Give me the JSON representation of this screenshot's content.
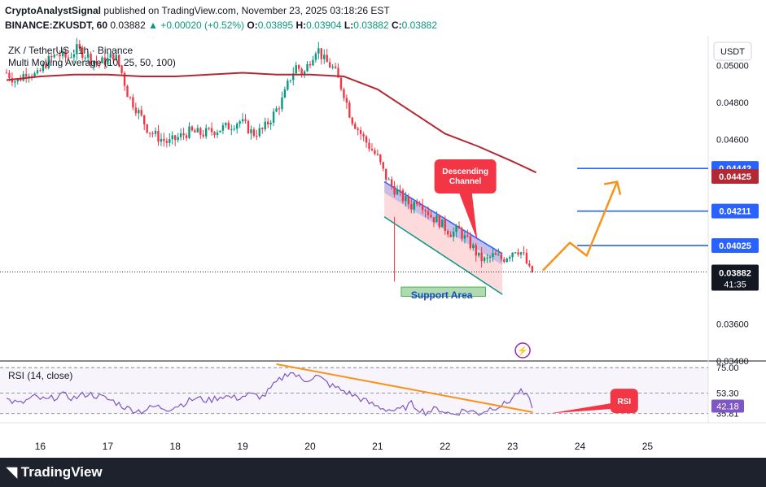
{
  "header": {
    "publisher": "CryptoAnalystSignal",
    "published_text": "published on TradingView.com, November 23, 2025 03:18:26 EST",
    "symbol_line": "BINANCE:ZKUSDT, 60",
    "last": "0.03882",
    "change": "▲ +0.00020 (+0.52%)",
    "ohlc_o": "0.03895",
    "ohlc_h": "0.03904",
    "ohlc_l": "0.03882",
    "ohlc_c": "0.03882"
  },
  "legend": {
    "title": "ZK / TetherUS · 1h · Binance",
    "indicator": "Multi Moving Average (10, 25, 50, 100)",
    "rsi_label": "RSI (14, close)"
  },
  "footer": {
    "brand": "TradingView"
  },
  "colors": {
    "up": "#089981",
    "down": "#f23645",
    "ma": "#b22833",
    "rsi": "#7e57c2",
    "orange": "#f7931a",
    "level": "#2962ff",
    "callout": "#f23645"
  },
  "chart_data": {
    "type": "candlestick",
    "currency_button": "USDT",
    "price_axis": {
      "ticks": [
        "0.05000",
        "0.04800",
        "0.04600",
        "0.03600",
        "0.03400"
      ],
      "ylim": [
        0.034,
        0.0516
      ]
    },
    "x_axis": {
      "ticks": [
        "16",
        "17",
        "18",
        "19",
        "20",
        "21",
        "22",
        "23",
        "24",
        "25"
      ]
    },
    "levels": [
      {
        "value": 0.04442,
        "label": "0.04442"
      },
      {
        "value": 0.04211,
        "label": "0.04211"
      },
      {
        "value": 0.04025,
        "label": "0.04025"
      }
    ],
    "ma_label": {
      "value": 0.04425,
      "label": "0.04425"
    },
    "current": {
      "value": 0.03882,
      "label": "0.03882",
      "countdown": "41:35"
    },
    "annotations": {
      "channel": "Descending Channel",
      "support": "Support Area",
      "rsi_callout": "RSI"
    },
    "close_path": [
      [
        15.5,
        0.0496
      ],
      [
        15.65,
        0.0491
      ],
      [
        15.8,
        0.0497
      ],
      [
        15.95,
        0.0494
      ],
      [
        16.1,
        0.0502
      ],
      [
        16.25,
        0.0506
      ],
      [
        16.4,
        0.0504
      ],
      [
        16.55,
        0.0509
      ],
      [
        16.7,
        0.0505
      ],
      [
        16.85,
        0.0501
      ],
      [
        17.0,
        0.0503
      ],
      [
        17.1,
        0.0506
      ],
      [
        17.2,
        0.0497
      ],
      [
        17.3,
        0.0484
      ],
      [
        17.45,
        0.0475
      ],
      [
        17.6,
        0.0465
      ],
      [
        17.75,
        0.0461
      ],
      [
        17.9,
        0.0458
      ],
      [
        18.05,
        0.0461
      ],
      [
        18.2,
        0.0464
      ],
      [
        18.4,
        0.0463
      ],
      [
        18.6,
        0.0465
      ],
      [
        18.8,
        0.0467
      ],
      [
        18.95,
        0.047
      ],
      [
        19.05,
        0.0467
      ],
      [
        19.15,
        0.0463
      ],
      [
        19.3,
        0.0465
      ],
      [
        19.45,
        0.0473
      ],
      [
        19.6,
        0.0482
      ],
      [
        19.7,
        0.0493
      ],
      [
        19.8,
        0.05
      ],
      [
        19.9,
        0.0495
      ],
      [
        20.0,
        0.0503
      ],
      [
        20.1,
        0.051
      ],
      [
        20.2,
        0.0503
      ],
      [
        20.35,
        0.0498
      ],
      [
        20.5,
        0.0485
      ],
      [
        20.6,
        0.0472
      ],
      [
        20.7,
        0.0466
      ],
      [
        20.8,
        0.046
      ],
      [
        20.9,
        0.0455
      ],
      [
        21.0,
        0.045
      ],
      [
        21.1,
        0.0441
      ],
      [
        21.2,
        0.0435
      ],
      [
        21.35,
        0.0429
      ],
      [
        21.5,
        0.0424
      ],
      [
        21.6,
        0.0428
      ],
      [
        21.7,
        0.0423
      ],
      [
        21.8,
        0.0418
      ],
      [
        21.9,
        0.0416
      ],
      [
        22.0,
        0.0412
      ],
      [
        22.1,
        0.0409
      ],
      [
        22.2,
        0.0411
      ],
      [
        22.3,
        0.0406
      ],
      [
        22.4,
        0.0402
      ],
      [
        22.5,
        0.0396
      ],
      [
        22.6,
        0.0394
      ],
      [
        22.7,
        0.0397
      ],
      [
        22.85,
        0.0395
      ],
      [
        22.95,
        0.0398
      ],
      [
        23.05,
        0.0401
      ],
      [
        23.15,
        0.0398
      ],
      [
        23.25,
        0.0389
      ],
      [
        23.3,
        0.0388
      ]
    ],
    "ma100_path": [
      [
        15.5,
        0.0492
      ],
      [
        16.0,
        0.0494
      ],
      [
        16.5,
        0.0495
      ],
      [
        17.0,
        0.0495
      ],
      [
        17.5,
        0.0494
      ],
      [
        18.0,
        0.0494
      ],
      [
        18.5,
        0.0495
      ],
      [
        19.0,
        0.0496
      ],
      [
        19.5,
        0.0495
      ],
      [
        20.0,
        0.0495
      ],
      [
        20.5,
        0.0494
      ],
      [
        21.0,
        0.0487
      ],
      [
        21.5,
        0.0475
      ],
      [
        22.0,
        0.0463
      ],
      [
        22.5,
        0.0456
      ],
      [
        23.0,
        0.0448
      ],
      [
        23.35,
        0.0442
      ]
    ],
    "rsi": {
      "ticks": [
        "75.00",
        "53.30",
        "35.81"
      ],
      "current": "42.18",
      "values": [
        [
          15.5,
          48
        ],
        [
          15.7,
          44
        ],
        [
          15.9,
          50
        ],
        [
          16.1,
          47
        ],
        [
          16.3,
          52
        ],
        [
          16.5,
          49
        ],
        [
          16.7,
          53
        ],
        [
          16.9,
          50
        ],
        [
          17.1,
          46
        ],
        [
          17.3,
          40
        ],
        [
          17.5,
          38
        ],
        [
          17.7,
          42
        ],
        [
          17.9,
          40
        ],
        [
          18.1,
          44
        ],
        [
          18.3,
          49
        ],
        [
          18.5,
          47
        ],
        [
          18.7,
          51
        ],
        [
          18.9,
          49
        ],
        [
          19.1,
          52
        ],
        [
          19.3,
          50
        ],
        [
          19.5,
          62
        ],
        [
          19.7,
          72
        ],
        [
          19.9,
          64
        ],
        [
          20.1,
          68
        ],
        [
          20.3,
          60
        ],
        [
          20.5,
          55
        ],
        [
          20.7,
          50
        ],
        [
          20.9,
          44
        ],
        [
          21.1,
          40
        ],
        [
          21.3,
          38
        ],
        [
          21.5,
          44
        ],
        [
          21.7,
          37
        ],
        [
          21.9,
          40
        ],
        [
          22.1,
          35
        ],
        [
          22.3,
          39
        ],
        [
          22.5,
          36
        ],
        [
          22.7,
          41
        ],
        [
          22.9,
          44
        ],
        [
          23.1,
          55
        ],
        [
          23.2,
          51
        ],
        [
          23.3,
          42
        ]
      ],
      "trendline": [
        [
          19.5,
          78
        ],
        [
          23.3,
          37
        ]
      ],
      "ylim": [
        28,
        80
      ]
    },
    "forecast_path": [
      [
        23.45,
        0.0389
      ],
      [
        23.85,
        0.0404
      ],
      [
        24.1,
        0.0397
      ],
      [
        24.55,
        0.0437
      ]
    ],
    "channel_upper": [
      [
        21.1,
        0.0437
      ],
      [
        22.85,
        0.0398
      ]
    ],
    "channel_lower": [
      [
        21.1,
        0.0418
      ],
      [
        22.85,
        0.0376
      ]
    ]
  }
}
